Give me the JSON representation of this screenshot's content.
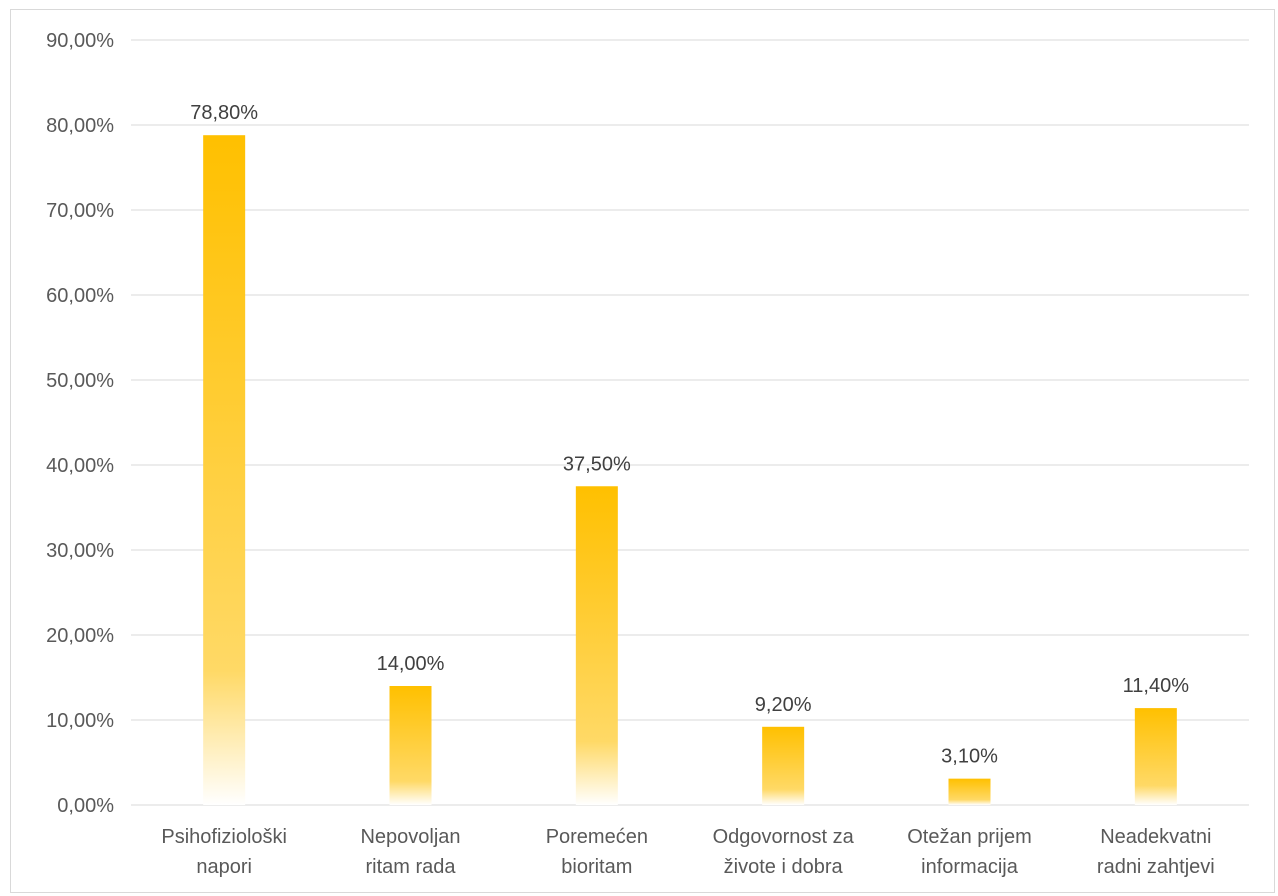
{
  "chart_data": {
    "type": "bar",
    "categories": [
      [
        "Psihofiziološki",
        "napori"
      ],
      [
        "Nepovoljan",
        "ritam rada"
      ],
      [
        "Poremećen",
        "bioritam"
      ],
      [
        "Odgovornost za",
        "živote i dobra"
      ],
      [
        "Otežan prijem",
        "informacija"
      ],
      [
        "Neadekvatni",
        "radni zahtjevi"
      ]
    ],
    "values": [
      78.8,
      14.0,
      37.5,
      9.2,
      3.1,
      11.4
    ],
    "data_labels": [
      "78,80%",
      "14,00%",
      "37,50%",
      "9,20%",
      "3,10%",
      "11,40%"
    ],
    "y_ticks": [
      0,
      10,
      20,
      30,
      40,
      50,
      60,
      70,
      80,
      90
    ],
    "y_tick_labels": [
      "0,00%",
      "10,00%",
      "20,00%",
      "30,00%",
      "40,00%",
      "50,00%",
      "60,00%",
      "70,00%",
      "80,00%",
      "90,00%"
    ],
    "ylim": [
      0,
      90
    ],
    "title": "",
    "xlabel": "",
    "ylabel": "",
    "grid": true,
    "legend": "none",
    "colors": {
      "bar": "#FFC000",
      "grid": "#d9d9d9",
      "text": "#595959"
    }
  }
}
